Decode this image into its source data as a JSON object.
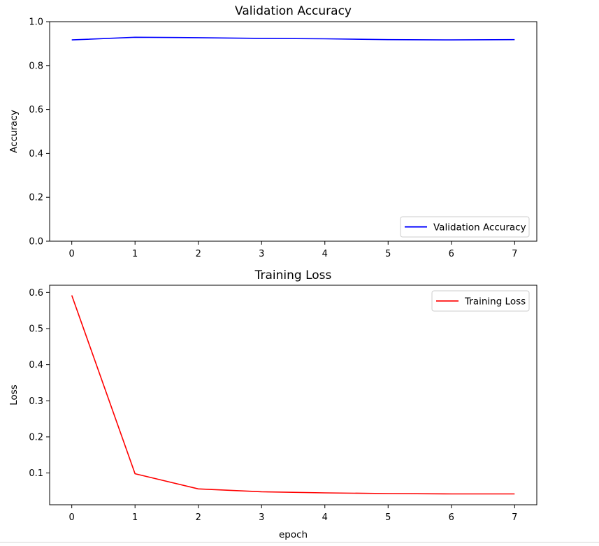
{
  "chart_data": [
    {
      "type": "line",
      "title": "Validation Accuracy",
      "xlabel": "",
      "ylabel": "Accuracy",
      "xlim": [
        -0.35,
        7.35
      ],
      "ylim": [
        0.0,
        1.0
      ],
      "xticks": [
        0,
        1,
        2,
        3,
        4,
        5,
        6,
        7
      ],
      "yticks": [
        0.0,
        0.2,
        0.4,
        0.6,
        0.8,
        1.0
      ],
      "ytick_labels": [
        "0.0",
        "0.2",
        "0.4",
        "0.6",
        "0.8",
        "1.0"
      ],
      "grid": false,
      "legend_position": "lower-right",
      "series": [
        {
          "name": "Validation Accuracy",
          "color": "#0000ff",
          "x": [
            0,
            1,
            2,
            3,
            4,
            5,
            6,
            7
          ],
          "y": [
            0.917,
            0.929,
            0.927,
            0.924,
            0.922,
            0.918,
            0.917,
            0.918
          ]
        }
      ]
    },
    {
      "type": "line",
      "title": "Training Loss",
      "xlabel": "epoch",
      "ylabel": "Loss",
      "xlim": [
        -0.35,
        7.35
      ],
      "ylim": [
        0.012,
        0.62
      ],
      "xticks": [
        0,
        1,
        2,
        3,
        4,
        5,
        6,
        7
      ],
      "yticks": [
        0.1,
        0.2,
        0.3,
        0.4,
        0.5,
        0.6
      ],
      "ytick_labels": [
        "0.1",
        "0.2",
        "0.3",
        "0.4",
        "0.5",
        "0.6"
      ],
      "grid": false,
      "legend_position": "upper-right",
      "series": [
        {
          "name": "Training Loss",
          "color": "#ff0000",
          "x": [
            0,
            1,
            2,
            3,
            4,
            5,
            6,
            7
          ],
          "y": [
            0.592,
            0.098,
            0.056,
            0.048,
            0.045,
            0.043,
            0.042,
            0.042
          ]
        }
      ]
    }
  ]
}
